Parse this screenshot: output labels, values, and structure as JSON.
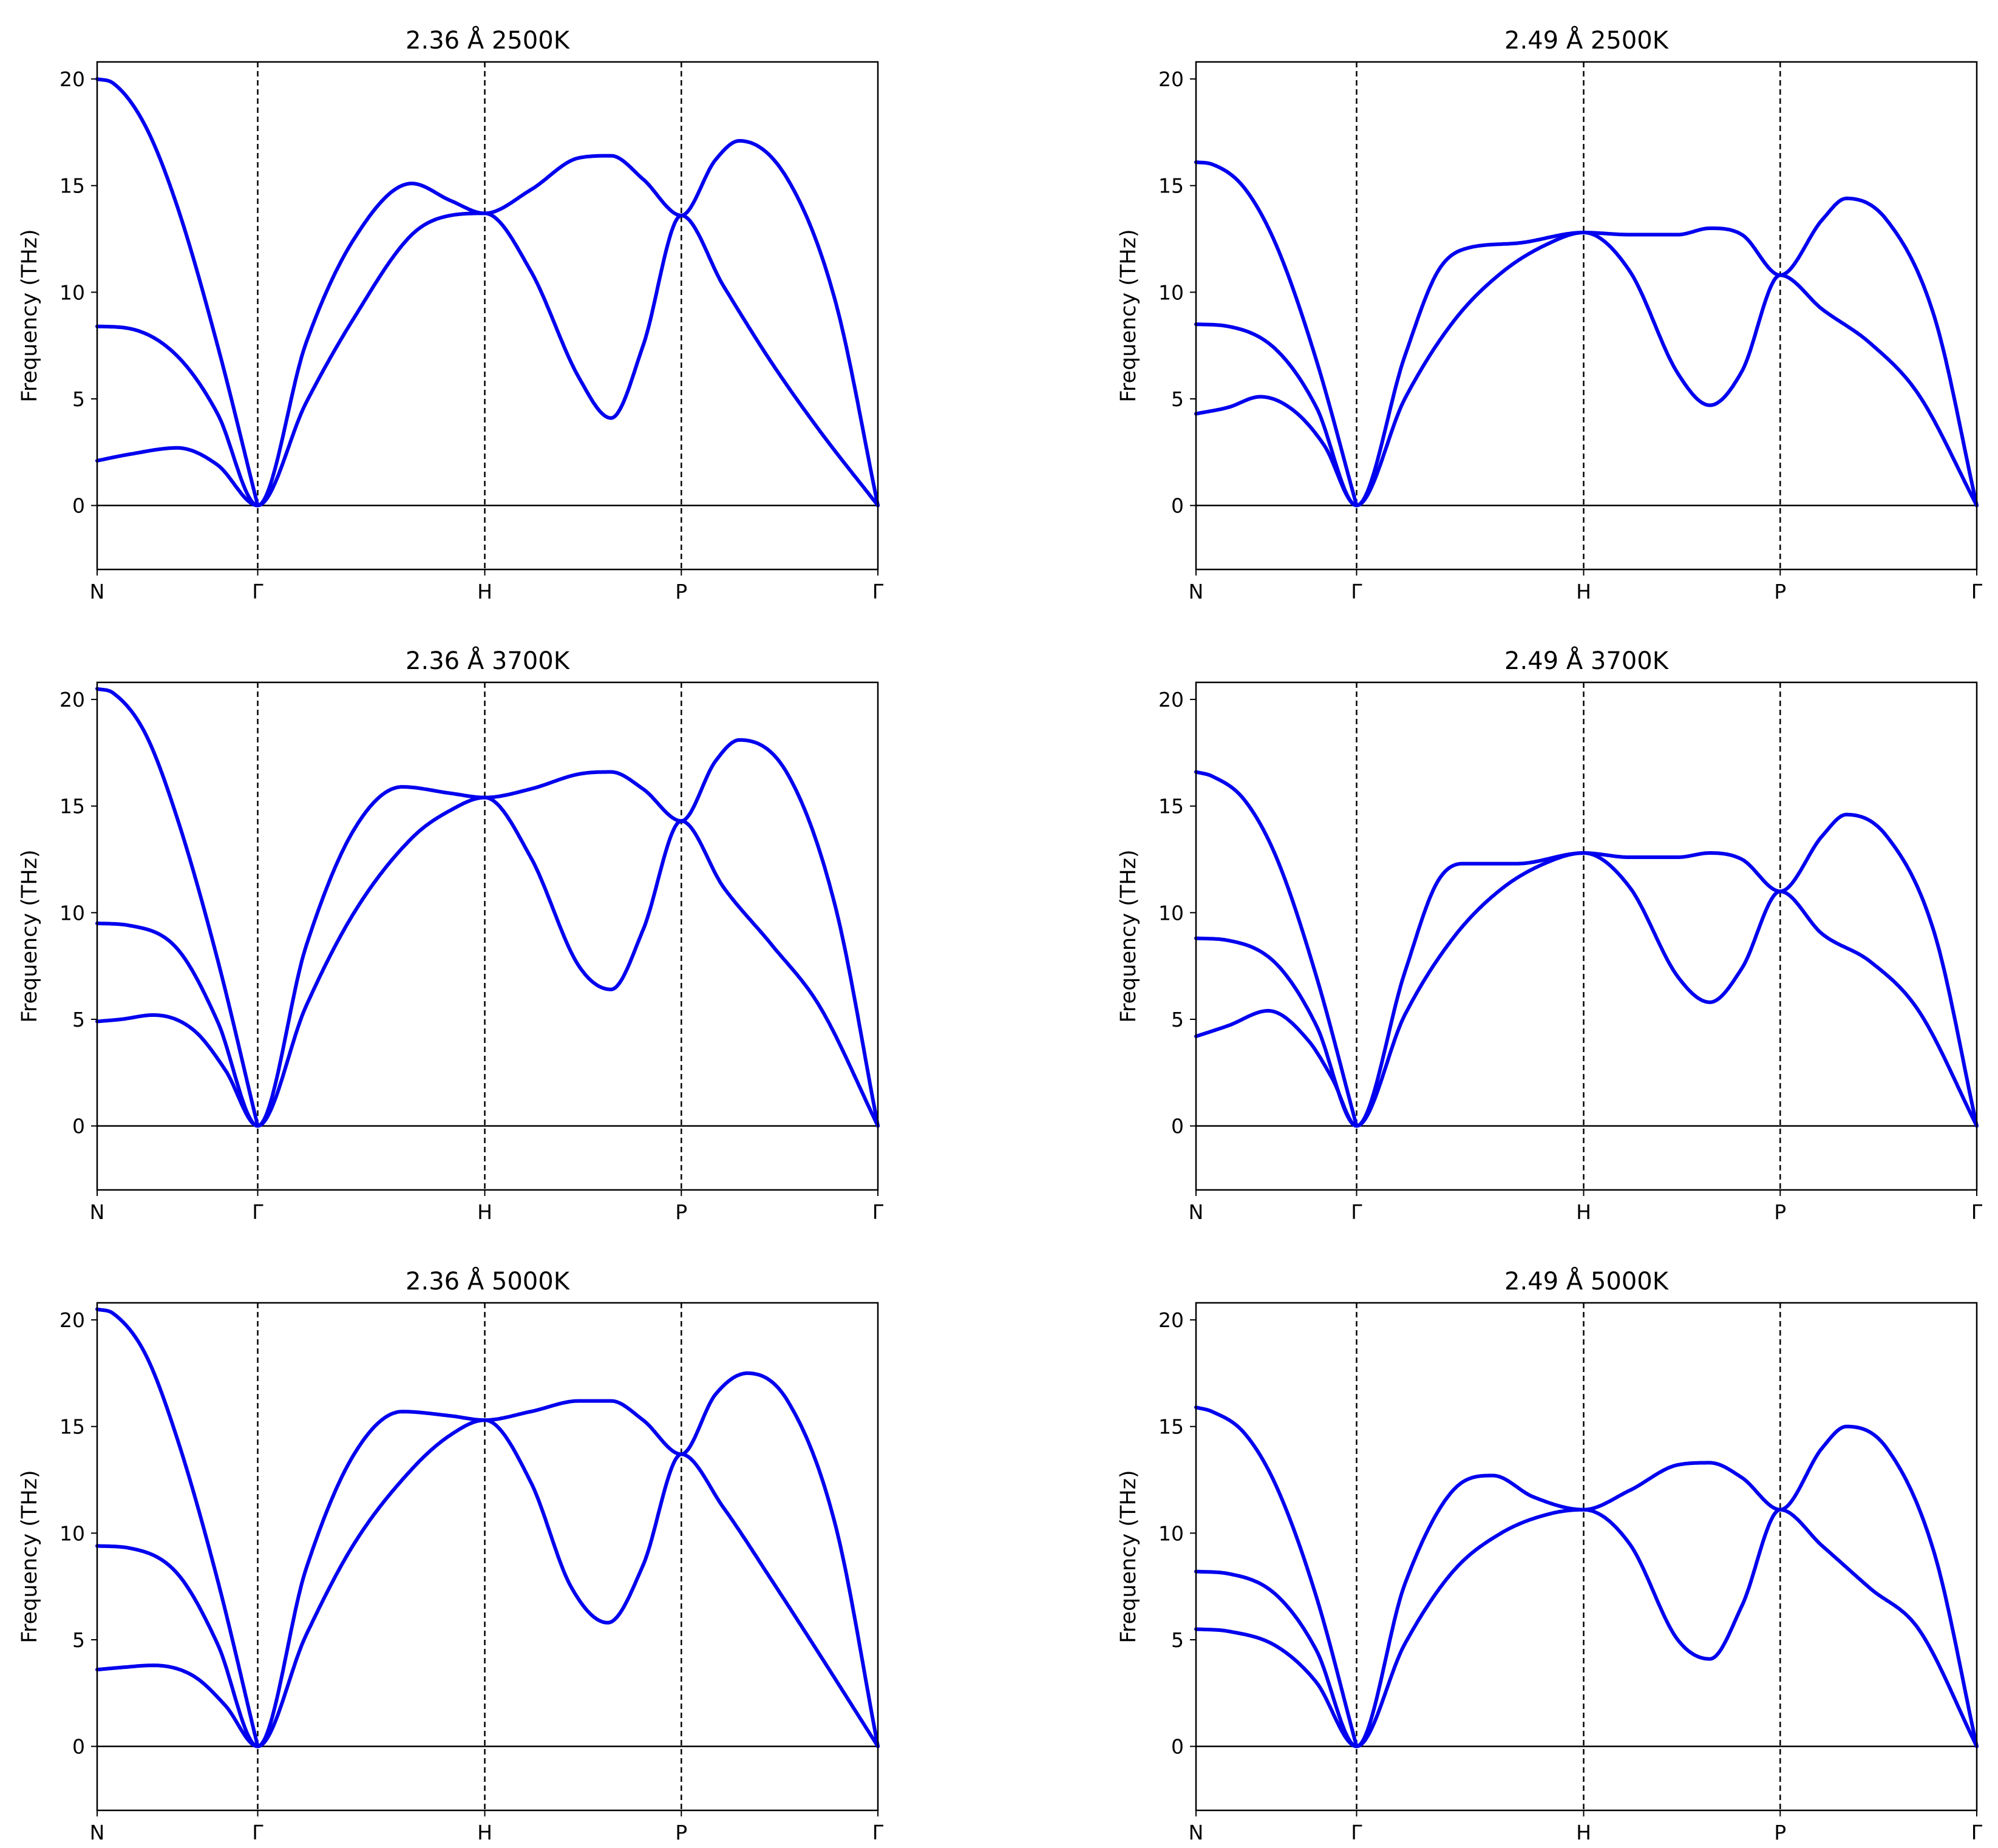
{
  "chart_data": [
    {
      "type": "line",
      "title": "2.36 Å  2500K",
      "ylabel": "Frequency (THz)",
      "xlabel": "",
      "x_ticks": [
        "N",
        "Γ",
        "H",
        "P",
        "Γ"
      ],
      "x_tick_positions": [
        0,
        1,
        2.414,
        3.638,
        4.862
      ],
      "ylim": [
        -3,
        20.8
      ],
      "y_ticks": [
        0,
        5,
        10,
        15,
        20
      ],
      "grid": false,
      "line_color": "#0000ee",
      "series": [
        {
          "x": [
            0,
            0.2,
            0.5,
            0.75,
            1.0,
            1.3,
            1.6,
            1.96,
            2.2,
            2.414,
            2.7,
            3.0,
            3.2,
            3.4,
            3.638,
            3.9,
            4.2,
            4.5,
            4.862
          ],
          "values": [
            2.1,
            2.4,
            2.7,
            1.9,
            0,
            4.8,
            8.8,
            12.7,
            13.6,
            13.7,
            11.0,
            6.0,
            4.1,
            7.5,
            13.6,
            10.3,
            6.7,
            3.5,
            0
          ]
        },
        {
          "x": [
            0,
            0.2,
            0.5,
            0.75,
            1.0,
            1.3,
            1.6,
            1.96,
            2.2,
            2.414,
            2.7,
            3.0,
            3.2,
            3.4,
            3.638,
            3.85,
            4.0,
            4.3,
            4.6,
            4.862
          ],
          "values": [
            8.4,
            8.3,
            7.0,
            4.3,
            0,
            7.6,
            12.5,
            15.1,
            14.3,
            13.7,
            14.8,
            16.3,
            16.4,
            15.3,
            13.6,
            16.2,
            17.1,
            15.3,
            9.5,
            0
          ]
        },
        {
          "x": [
            0,
            0.1,
            0.3,
            0.5,
            0.75,
            1.0
          ],
          "values": [
            20.0,
            19.8,
            17.8,
            14.0,
            7.5,
            0
          ]
        }
      ]
    },
    {
      "type": "line",
      "title": "2.49 Å  2500K",
      "ylabel": "Frequency (THz)",
      "xlabel": "",
      "x_ticks": [
        "N",
        "Γ",
        "H",
        "P",
        "Γ"
      ],
      "x_tick_positions": [
        0,
        1,
        2.414,
        3.638,
        4.862
      ],
      "ylim": [
        -3,
        20.8
      ],
      "y_ticks": [
        0,
        5,
        10,
        15,
        20
      ],
      "grid": false,
      "line_color": "#0000ee",
      "series": [
        {
          "x": [
            0,
            0.2,
            0.4,
            0.6,
            0.8,
            1.0,
            1.3,
            1.6,
            1.9,
            2.2,
            2.414,
            2.7,
            3.0,
            3.2,
            3.4,
            3.638,
            3.9,
            4.2,
            4.5,
            4.862
          ],
          "values": [
            4.3,
            4.6,
            5.1,
            4.5,
            2.8,
            0,
            5.0,
            8.6,
            10.9,
            12.3,
            12.8,
            11.0,
            6.2,
            4.7,
            6.3,
            10.8,
            9.2,
            7.6,
            5.2,
            0
          ]
        },
        {
          "x": [
            0,
            0.2,
            0.5,
            0.75,
            1.0,
            1.3,
            1.5,
            1.66,
            2.0,
            2.414,
            2.7,
            3.0,
            3.2,
            3.4,
            3.638,
            3.9,
            4.05,
            4.3,
            4.6,
            4.862
          ],
          "values": [
            8.5,
            8.4,
            7.3,
            4.6,
            0,
            7.0,
            10.9,
            12.0,
            12.3,
            12.8,
            12.7,
            12.7,
            13.0,
            12.7,
            10.8,
            13.4,
            14.4,
            13.4,
            8.8,
            0
          ]
        },
        {
          "x": [
            0,
            0.1,
            0.3,
            0.5,
            0.75,
            1.0
          ],
          "values": [
            16.1,
            16.0,
            14.9,
            12.2,
            6.8,
            0
          ]
        }
      ]
    },
    {
      "type": "line",
      "title": "2.36 Å  3700K",
      "ylabel": "Frequency (THz)",
      "xlabel": "",
      "x_ticks": [
        "N",
        "Γ",
        "H",
        "P",
        "Γ"
      ],
      "x_tick_positions": [
        0,
        1,
        2.414,
        3.638,
        4.862
      ],
      "ylim": [
        -3,
        20.8
      ],
      "y_ticks": [
        0,
        5,
        10,
        15,
        20
      ],
      "grid": false,
      "line_color": "#0000ee",
      "series": [
        {
          "x": [
            0,
            0.15,
            0.35,
            0.6,
            0.8,
            1.0,
            1.3,
            1.6,
            1.96,
            2.2,
            2.414,
            2.7,
            3.0,
            3.2,
            3.4,
            3.638,
            3.9,
            4.2,
            4.5,
            4.862
          ],
          "values": [
            4.9,
            5.0,
            5.2,
            4.5,
            2.6,
            0,
            5.6,
            10.0,
            13.5,
            14.8,
            15.4,
            12.6,
            7.5,
            6.4,
            9.2,
            14.3,
            11.2,
            8.5,
            5.6,
            0
          ]
        },
        {
          "x": [
            0,
            0.2,
            0.5,
            0.75,
            1.0,
            1.3,
            1.6,
            1.9,
            2.2,
            2.414,
            2.7,
            3.0,
            3.2,
            3.4,
            3.638,
            3.85,
            4.0,
            4.3,
            4.6,
            4.862
          ],
          "values": [
            9.5,
            9.4,
            8.3,
            4.9,
            0,
            8.4,
            13.9,
            15.9,
            15.6,
            15.4,
            15.8,
            16.5,
            16.6,
            15.8,
            14.3,
            17.1,
            18.1,
            16.5,
            10.2,
            0
          ]
        },
        {
          "x": [
            0,
            0.1,
            0.3,
            0.5,
            0.75,
            1.0
          ],
          "values": [
            20.5,
            20.3,
            18.4,
            14.4,
            7.8,
            0
          ]
        }
      ]
    },
    {
      "type": "line",
      "title": "2.49 Å  3700K",
      "ylabel": "Frequency (THz)",
      "xlabel": "",
      "x_ticks": [
        "N",
        "Γ",
        "H",
        "P",
        "Γ"
      ],
      "x_tick_positions": [
        0,
        1,
        2.414,
        3.638,
        4.862
      ],
      "ylim": [
        -3,
        20.8
      ],
      "y_ticks": [
        0,
        5,
        10,
        15,
        20
      ],
      "grid": false,
      "line_color": "#0000ee",
      "series": [
        {
          "x": [
            0,
            0.2,
            0.45,
            0.7,
            0.85,
            1.0,
            1.3,
            1.6,
            1.9,
            2.2,
            2.414,
            2.7,
            3.0,
            3.2,
            3.4,
            3.638,
            3.9,
            4.2,
            4.5,
            4.862
          ],
          "values": [
            4.2,
            4.7,
            5.4,
            4.0,
            2.2,
            0,
            5.2,
            8.8,
            11.1,
            12.4,
            12.8,
            11.2,
            7.0,
            5.8,
            7.4,
            11.0,
            9.0,
            7.7,
            5.4,
            0
          ]
        },
        {
          "x": [
            0,
            0.2,
            0.5,
            0.75,
            1.0,
            1.3,
            1.5,
            1.66,
            2.0,
            2.414,
            2.7,
            3.0,
            3.2,
            3.4,
            3.638,
            3.9,
            4.05,
            4.3,
            4.6,
            4.862
          ],
          "values": [
            8.8,
            8.7,
            7.6,
            4.7,
            0,
            7.2,
            11.4,
            12.3,
            12.3,
            12.8,
            12.6,
            12.6,
            12.8,
            12.5,
            11.0,
            13.6,
            14.6,
            13.6,
            9.0,
            0
          ]
        },
        {
          "x": [
            0,
            0.1,
            0.3,
            0.5,
            0.75,
            1.0
          ],
          "values": [
            16.6,
            16.4,
            15.3,
            12.6,
            7.0,
            0
          ]
        }
      ]
    },
    {
      "type": "line",
      "title": "2.36 Å  5000K",
      "ylabel": "Frequency (THz)",
      "xlabel": "",
      "x_ticks": [
        "N",
        "Γ",
        "H",
        "P",
        "Γ"
      ],
      "x_tick_positions": [
        0,
        1,
        2.414,
        3.638,
        4.862
      ],
      "ylim": [
        -3,
        20.8
      ],
      "y_ticks": [
        0,
        5,
        10,
        15,
        20
      ],
      "grid": false,
      "line_color": "#0000ee",
      "series": [
        {
          "x": [
            0,
            0.15,
            0.35,
            0.6,
            0.8,
            1.0,
            1.3,
            1.6,
            1.96,
            2.2,
            2.414,
            2.7,
            2.95,
            3.18,
            3.4,
            3.638,
            3.9,
            4.2,
            4.5,
            4.862
          ],
          "values": [
            3.6,
            3.7,
            3.8,
            3.3,
            1.9,
            0,
            5.2,
            9.5,
            13.0,
            14.6,
            15.3,
            12.4,
            7.5,
            5.8,
            8.5,
            13.7,
            11.2,
            7.8,
            4.3,
            0
          ]
        },
        {
          "x": [
            0,
            0.2,
            0.5,
            0.75,
            1.0,
            1.3,
            1.6,
            1.9,
            2.2,
            2.414,
            2.7,
            3.0,
            3.2,
            3.4,
            3.638,
            3.85,
            4.05,
            4.3,
            4.6,
            4.862
          ],
          "values": [
            9.4,
            9.3,
            8.1,
            4.8,
            0,
            8.3,
            13.7,
            15.7,
            15.5,
            15.3,
            15.7,
            16.2,
            16.2,
            15.3,
            13.7,
            16.5,
            17.5,
            16.2,
            10.3,
            0
          ]
        },
        {
          "x": [
            0,
            0.1,
            0.3,
            0.5,
            0.75,
            1.0
          ],
          "values": [
            20.5,
            20.3,
            18.4,
            14.4,
            7.8,
            0
          ]
        }
      ]
    },
    {
      "type": "line",
      "title": "2.49 Å  5000K",
      "ylabel": "Frequency (THz)",
      "xlabel": "",
      "x_ticks": [
        "N",
        "Γ",
        "H",
        "P",
        "Γ"
      ],
      "x_tick_positions": [
        0,
        1,
        2.414,
        3.638,
        4.862
      ],
      "ylim": [
        -3,
        20.8
      ],
      "y_ticks": [
        0,
        5,
        10,
        15,
        20
      ],
      "grid": false,
      "line_color": "#0000ee",
      "series": [
        {
          "x": [
            0,
            0.2,
            0.5,
            0.75,
            1.0,
            1.3,
            1.6,
            1.9,
            2.2,
            2.414,
            2.7,
            3.0,
            3.2,
            3.4,
            3.638,
            3.9,
            4.2,
            4.5,
            4.862
          ],
          "values": [
            5.5,
            5.4,
            4.7,
            3.0,
            0,
            4.8,
            8.2,
            10.0,
            10.9,
            11.1,
            9.5,
            5.0,
            4.1,
            6.6,
            11.1,
            9.4,
            7.4,
            5.5,
            0
          ]
        },
        {
          "x": [
            0,
            0.2,
            0.5,
            0.75,
            1.0,
            1.3,
            1.6,
            1.85,
            2.1,
            2.414,
            2.7,
            3.0,
            3.2,
            3.4,
            3.638,
            3.9,
            4.05,
            4.3,
            4.6,
            4.862
          ],
          "values": [
            8.2,
            8.1,
            7.1,
            4.5,
            0,
            7.6,
            12.0,
            12.7,
            11.7,
            11.1,
            12.0,
            13.2,
            13.3,
            12.6,
            11.1,
            14.0,
            15.0,
            14.0,
            9.0,
            0
          ]
        },
        {
          "x": [
            0,
            0.1,
            0.3,
            0.5,
            0.75,
            1.0
          ],
          "values": [
            15.9,
            15.7,
            14.7,
            12.2,
            7.0,
            0
          ]
        }
      ]
    }
  ]
}
